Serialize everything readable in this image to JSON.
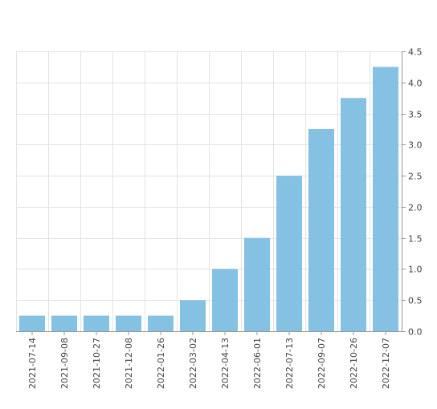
{
  "chart_data": {
    "type": "bar",
    "title": "",
    "xlabel": "",
    "ylabel": "",
    "categories": [
      "2021-07-14",
      "2021-09-08",
      "2021-10-27",
      "2021-12-08",
      "2022-01-26",
      "2022-03-02",
      "2022-04-13",
      "2022-06-01",
      "2022-07-13",
      "2022-09-07",
      "2022-10-26",
      "2022-12-07"
    ],
    "values": [
      0.25,
      0.25,
      0.25,
      0.25,
      0.25,
      0.5,
      1.0,
      1.5,
      2.5,
      3.25,
      3.75,
      4.25
    ],
    "ylim": [
      0,
      4.5
    ],
    "yticks": [
      "0.0",
      "0.5",
      "1.0",
      "1.5",
      "2.0",
      "2.5",
      "3.0",
      "3.5",
      "4.0",
      "4.5"
    ],
    "y_axis_side": "right",
    "grid": true,
    "bar_color": "#85c1e3"
  }
}
